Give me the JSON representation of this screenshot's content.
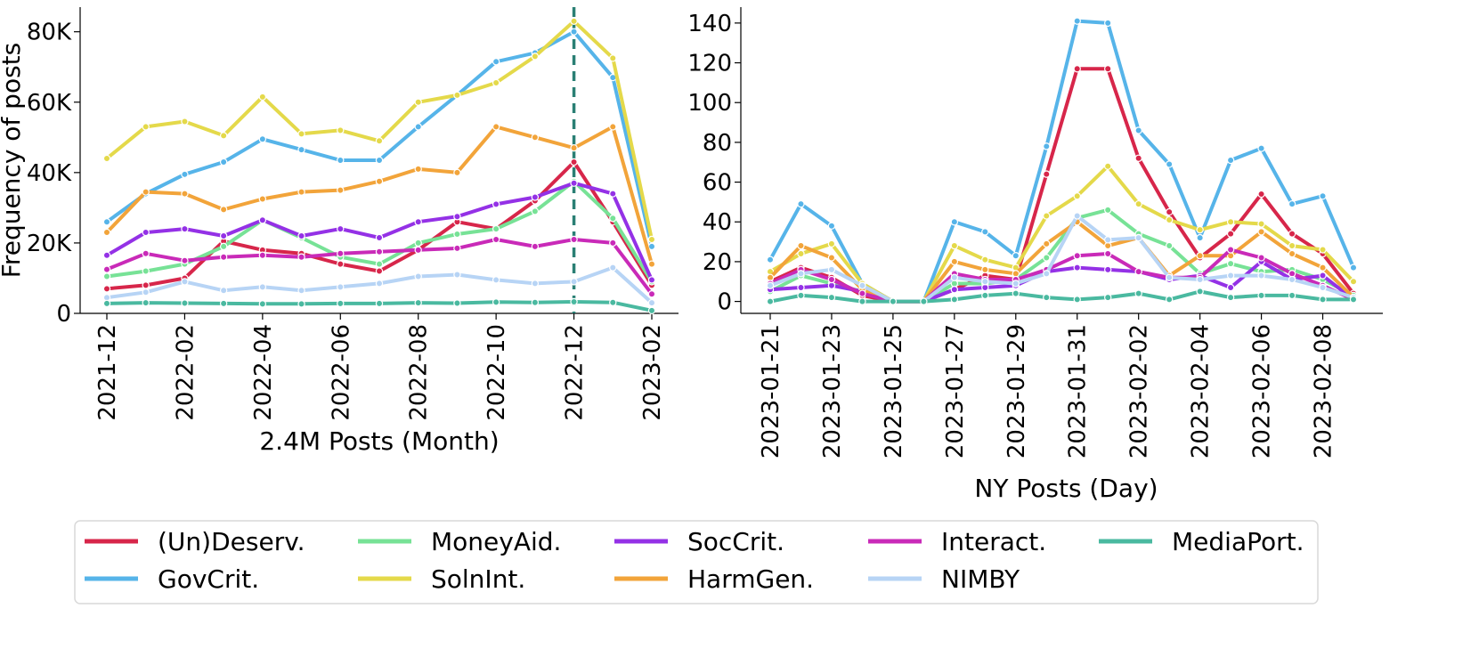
{
  "chart_data": [
    {
      "type": "line",
      "xlabel": "2.4M Posts (Month)",
      "ylabel": "Frequency of posts",
      "ylim": [
        0,
        87000
      ],
      "yticks": [
        0,
        20000,
        40000,
        60000,
        80000
      ],
      "ytick_labels": [
        "0",
        "20K",
        "40K",
        "60K",
        "80K"
      ],
      "x": [
        "2021-12",
        "2022-01",
        "2022-02",
        "2022-03",
        "2022-04",
        "2022-05",
        "2022-06",
        "2022-07",
        "2022-08",
        "2022-09",
        "2022-10",
        "2022-11",
        "2022-12",
        "2023-01",
        "2023-02"
      ],
      "xtick_labels": [
        "2021-12",
        "2022-02",
        "2022-04",
        "2022-06",
        "2022-08",
        "2022-10",
        "2022-12",
        "2023-02"
      ],
      "vline_at": "2022-12",
      "series": [
        {
          "name": "(Un)Deserv.",
          "color": "#d7264a",
          "values": [
            7000,
            8000,
            10000,
            20500,
            18000,
            17000,
            14000,
            12000,
            18000,
            26000,
            24000,
            32000,
            43000,
            26000,
            8000
          ]
        },
        {
          "name": "GovCrit.",
          "color": "#56b4e9",
          "values": [
            26000,
            34000,
            39500,
            43000,
            49500,
            46500,
            43500,
            43500,
            53000,
            62000,
            71500,
            74000,
            80000,
            67000,
            19000
          ]
        },
        {
          "name": "MoneyAid.",
          "color": "#77e296",
          "values": [
            10500,
            12000,
            14000,
            19000,
            26500,
            21500,
            16000,
            14000,
            20000,
            22500,
            24000,
            29000,
            37500,
            27000,
            9000
          ]
        },
        {
          "name": "SolnInt.",
          "color": "#e4d94a",
          "values": [
            44000,
            53000,
            54500,
            50500,
            61500,
            51000,
            52000,
            49000,
            60000,
            62000,
            65500,
            73000,
            83000,
            72500,
            21000
          ]
        },
        {
          "name": "SocCrit.",
          "color": "#9431e6",
          "values": [
            16500,
            23000,
            24000,
            22000,
            26500,
            22000,
            24000,
            21500,
            26000,
            27500,
            31000,
            33000,
            37000,
            34000,
            9500
          ]
        },
        {
          "name": "HarmGen.",
          "color": "#f2a43a",
          "values": [
            23000,
            34500,
            34000,
            29500,
            32500,
            34500,
            35000,
            37500,
            41000,
            40000,
            53000,
            50000,
            47000,
            53000,
            14000
          ]
        },
        {
          "name": "Interact.",
          "color": "#c92ab8",
          "values": [
            12500,
            17000,
            15000,
            16000,
            16500,
            16000,
            17000,
            17500,
            18000,
            18500,
            21000,
            19000,
            21000,
            20000,
            5500
          ]
        },
        {
          "name": "NIMBY",
          "color": "#b7d4f5",
          "values": [
            4500,
            6000,
            9000,
            6500,
            7500,
            6500,
            7500,
            8500,
            10500,
            11000,
            9500,
            8500,
            9000,
            13000,
            3000
          ]
        },
        {
          "name": "MediaPort.",
          "color": "#4ab9a0",
          "values": [
            2800,
            3000,
            2900,
            2800,
            2700,
            2700,
            2800,
            2800,
            3000,
            2900,
            3200,
            3100,
            3300,
            3100,
            800
          ]
        }
      ]
    },
    {
      "type": "line",
      "xlabel": "NY Posts (Day)",
      "ylabel": "",
      "ylim": [
        -6,
        148
      ],
      "yticks": [
        0,
        20,
        40,
        60,
        80,
        100,
        120,
        140
      ],
      "ytick_labels": [
        "0",
        "20",
        "40",
        "60",
        "80",
        "100",
        "120",
        "140"
      ],
      "x": [
        "2023-01-21",
        "2023-01-22",
        "2023-01-23",
        "2023-01-24",
        "2023-01-25",
        "2023-01-26",
        "2023-01-27",
        "2023-01-28",
        "2023-01-29",
        "2023-01-30",
        "2023-01-31",
        "2023-02-01",
        "2023-02-02",
        "2023-02-03",
        "2023-02-04",
        "2023-02-05",
        "2023-02-06",
        "2023-02-07",
        "2023-02-08",
        "2023-02-09"
      ],
      "xtick_labels": [
        "2023-01-21",
        "2023-01-23",
        "2023-01-25",
        "2023-01-27",
        "2023-01-29",
        "2023-01-31",
        "2023-02-02",
        "2023-02-04",
        "2023-02-06",
        "2023-02-08"
      ],
      "x_sub": [
        0,
        1,
        2,
        3,
        4,
        5,
        6,
        7,
        8,
        9,
        9.5,
        10,
        11,
        12,
        12.5,
        13,
        14,
        15,
        16,
        17,
        17.5,
        18,
        19
      ],
      "series": [
        {
          "name": "(Un)Deserv.",
          "color": "#d7264a",
          "values": [
            10,
            17,
            12,
            3,
            0,
            0,
            6,
            13,
            11,
            64,
            117,
            117,
            72,
            45,
            22,
            34,
            54,
            34,
            24,
            4
          ],
          "pts": [
            0,
            1,
            2,
            3,
            4,
            5,
            6,
            7,
            8,
            9,
            10,
            11,
            12,
            13,
            14,
            15,
            16,
            17,
            18,
            19
          ]
        },
        {
          "name": "GovCrit.",
          "color": "#56b4e9",
          "values": [
            21,
            49,
            38,
            9,
            0,
            0,
            40,
            35,
            23,
            78,
            141,
            140,
            86,
            69,
            32,
            71,
            77,
            49,
            53,
            17
          ],
          "pts": [
            0,
            1,
            2,
            3,
            4,
            5,
            6,
            7,
            8,
            9,
            10,
            11,
            12,
            13,
            14,
            15,
            16,
            17,
            18,
            19
          ]
        },
        {
          "name": "MoneyAid.",
          "color": "#77e296",
          "values": [
            5,
            13,
            9,
            5,
            0,
            0,
            9,
            9,
            11,
            22,
            42,
            46,
            34,
            28,
            14,
            19,
            15,
            16,
            11,
            3
          ],
          "pts": [
            0,
            1,
            2,
            3,
            4,
            5,
            6,
            7,
            8,
            9,
            10,
            11,
            12,
            13,
            14,
            15,
            16,
            17,
            18,
            19
          ]
        },
        {
          "name": "SolnInt.",
          "color": "#e4d94a",
          "values": [
            15,
            24,
            29,
            9,
            0,
            0,
            28,
            21,
            17,
            43,
            53,
            68,
            49,
            41,
            36,
            40,
            39,
            28,
            26,
            10
          ],
          "pts": [
            0,
            1,
            2,
            3,
            4,
            5,
            6,
            7,
            8,
            9,
            10,
            11,
            12,
            13,
            14,
            15,
            16,
            17,
            18,
            19
          ]
        },
        {
          "name": "SocCrit.",
          "color": "#9431e6",
          "values": [
            6,
            7,
            8,
            5,
            0,
            0,
            6,
            7,
            8,
            15,
            17,
            16,
            15,
            11,
            13,
            7,
            20,
            11,
            13,
            1
          ],
          "pts": [
            0,
            1,
            2,
            3,
            4,
            5,
            6,
            7,
            8,
            9,
            10,
            11,
            12,
            13,
            14,
            15,
            16,
            17,
            18,
            19
          ]
        },
        {
          "name": "HarmGen.",
          "color": "#f2a43a",
          "values": [
            12,
            28,
            22,
            6,
            0,
            0,
            20,
            16,
            14,
            29,
            40,
            28,
            32,
            13,
            23,
            23,
            35,
            24,
            17,
            2
          ],
          "pts": [
            0,
            1,
            2,
            3,
            4,
            5,
            6,
            7,
            8,
            9,
            10,
            11,
            12,
            13,
            14,
            15,
            16,
            17,
            18,
            19
          ]
        },
        {
          "name": "Interact.",
          "color": "#c92ab8",
          "values": [
            9,
            16,
            11,
            4,
            0,
            0,
            14,
            11,
            11,
            16,
            23,
            24,
            15,
            12,
            12,
            26,
            22,
            14,
            8,
            1
          ],
          "pts": [
            0,
            1,
            2,
            3,
            4,
            5,
            6,
            7,
            8,
            9,
            10,
            11,
            12,
            13,
            14,
            15,
            16,
            17,
            18,
            19
          ]
        },
        {
          "name": "NIMBY",
          "color": "#b7d4f5",
          "values": [
            8,
            14,
            16,
            8,
            0,
            0,
            12,
            10,
            9,
            14,
            43,
            31,
            32,
            12,
            11,
            13,
            13,
            11,
            7,
            2
          ],
          "pts": [
            0,
            1,
            2,
            3,
            4,
            5,
            6,
            7,
            8,
            9,
            10,
            11,
            12,
            13,
            14,
            15,
            16,
            17,
            18,
            19
          ]
        },
        {
          "name": "MediaPort.",
          "color": "#4ab9a0",
          "values": [
            0,
            3,
            2,
            0,
            0,
            0,
            1,
            3,
            4,
            2,
            1,
            2,
            4,
            1,
            5,
            2,
            3,
            3,
            1,
            1
          ],
          "pts": [
            0,
            1,
            2,
            3,
            4,
            5,
            6,
            7,
            8,
            9,
            10,
            11,
            12,
            13,
            14,
            15,
            16,
            17,
            18,
            19
          ]
        }
      ]
    }
  ],
  "legend": {
    "entries": [
      {
        "name": "(Un)Deserv.",
        "color": "#d7264a"
      },
      {
        "name": "MoneyAid.",
        "color": "#77e296"
      },
      {
        "name": "SocCrit.",
        "color": "#9431e6"
      },
      {
        "name": "Interact.",
        "color": "#c92ab8"
      },
      {
        "name": "MediaPort.",
        "color": "#4ab9a0"
      },
      {
        "name": "GovCrit.",
        "color": "#56b4e9"
      },
      {
        "name": "SolnInt.",
        "color": "#e4d94a"
      },
      {
        "name": "HarmGen.",
        "color": "#f2a43a"
      },
      {
        "name": "NIMBY",
        "color": "#b7d4f5"
      }
    ]
  }
}
